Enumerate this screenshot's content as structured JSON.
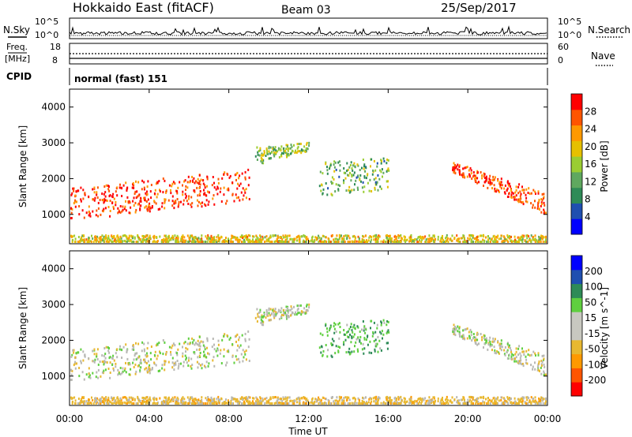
{
  "header": {
    "site": "Hokkaido East (fitACF)",
    "beam": "Beam 03",
    "date": "25/Sep/2017"
  },
  "noise_panel": {
    "left_label": "N.Sky",
    "right_label": "N.Search",
    "left_ticks": [
      "10^5",
      "10^0"
    ],
    "right_ticks": [
      "10^5",
      "10^0"
    ]
  },
  "freq_panel": {
    "left_label_1": "Freq.",
    "left_label_2": "[MHz]",
    "left_ticks": [
      "18",
      "8"
    ],
    "right_label": "Nave",
    "right_ticks": [
      "60",
      "0"
    ]
  },
  "cpid_panel": {
    "label": "CPID",
    "mode_text": "normal (fast) 151"
  },
  "colors": {
    "power_scale": [
      "#0000ff",
      "#1f4fb0",
      "#2e8b57",
      "#5fa85f",
      "#9acd32",
      "#e6c000",
      "#ff9900",
      "#ff5500",
      "#ff0000"
    ],
    "velocity_scale": [
      "#ff0000",
      "#ff5500",
      "#ff9900",
      "#e8b830",
      "#c8c8c0",
      "#c8c8c0",
      "#5fcf3f",
      "#2e8b57",
      "#1f4fb0",
      "#0000ff"
    ],
    "ground_scatter": "#b8b8b4"
  },
  "chart_data": [
    {
      "type": "heatmap",
      "title": "",
      "xlabel": "Time UT",
      "ylabel": "Slant Range [km]",
      "x_ticks": [
        "00:00",
        "04:00",
        "08:00",
        "12:00",
        "16:00",
        "20:00",
        "00:00"
      ],
      "y_ticks": [
        "1000",
        "2000",
        "3000",
        "4000"
      ],
      "ylim": [
        180,
        4500
      ],
      "colorbar": {
        "label": "Power [dB]",
        "ticks": [
          "4",
          "8",
          "12",
          "16",
          "20",
          "24",
          "28"
        ],
        "range": [
          0,
          30
        ]
      },
      "regions": [
        {
          "name": "band1",
          "t_start": 0,
          "t_end": 9,
          "r_low_start": 850,
          "r_low_end": 1400,
          "r_high_start": 1750,
          "r_high_end": 2300,
          "power": 27
        },
        {
          "name": "band2",
          "t_start": 19.2,
          "t_end": 24,
          "r_low_start": 2200,
          "r_low_end": 1000,
          "r_high_start": 2500,
          "r_high_end": 1600,
          "power": 26
        },
        {
          "name": "patch_10",
          "t_start": 9.3,
          "t_end": 12,
          "r_low_start": 2400,
          "r_low_end": 2800,
          "r_high_start": 2900,
          "r_high_end": 3050,
          "power": 14
        },
        {
          "name": "patches_mid",
          "t_start": 12.5,
          "t_end": 16,
          "r_low_start": 1500,
          "r_low_end": 1700,
          "r_high_start": 2500,
          "r_high_end": 2600,
          "power": 12
        },
        {
          "name": "near_range",
          "t_start": 0,
          "t_end": 24,
          "r_low_start": 200,
          "r_low_end": 200,
          "r_high_start": 450,
          "r_high_end": 450,
          "power": 18
        }
      ]
    },
    {
      "type": "heatmap",
      "title": "",
      "xlabel": "Time UT",
      "ylabel": "Slant Range [km]",
      "x_ticks": [
        "00:00",
        "04:00",
        "08:00",
        "12:00",
        "16:00",
        "20:00",
        "00:00"
      ],
      "y_ticks": [
        "1000",
        "2000",
        "3000",
        "4000"
      ],
      "ylim": [
        180,
        4500
      ],
      "colorbar": {
        "label": "Velocity [m s^-1]",
        "ticks": [
          "-200",
          "-100",
          "-50",
          "-15",
          "15",
          "50",
          "100",
          "200"
        ],
        "range": [
          -250,
          250
        ]
      },
      "regions": [
        {
          "name": "band1",
          "t_start": 0,
          "t_end": 9,
          "r_low_start": 850,
          "r_low_end": 1400,
          "r_high_start": 1750,
          "r_high_end": 2300,
          "velocity": 0
        },
        {
          "name": "band2",
          "t_start": 19.2,
          "t_end": 24,
          "r_low_start": 2200,
          "r_low_end": 1000,
          "r_high_start": 2500,
          "r_high_end": 1600,
          "velocity": 0
        },
        {
          "name": "patch_10",
          "t_start": 9.3,
          "t_end": 12,
          "r_low_start": 2400,
          "r_low_end": 2800,
          "r_high_start": 2900,
          "r_high_end": 3050,
          "velocity": 0
        },
        {
          "name": "patches_mid",
          "t_start": 12.5,
          "t_end": 16,
          "r_low_start": 1500,
          "r_low_end": 1700,
          "r_high_start": 2500,
          "r_high_end": 2600,
          "velocity": 40
        },
        {
          "name": "near_range",
          "t_start": 0,
          "t_end": 24,
          "r_low_start": 200,
          "r_low_end": 200,
          "r_high_start": 450,
          "r_high_end": 450,
          "velocity": -30
        }
      ]
    }
  ]
}
